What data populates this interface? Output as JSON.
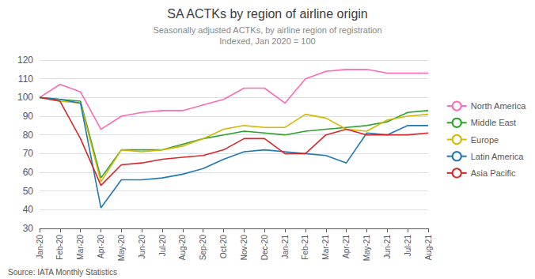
{
  "chart_data": {
    "type": "line",
    "title": "SA ACTKs by region of airline origin",
    "subtitle": "Seasonally adjusted ACTKs, by airline region of registration\nIndexed, Jan 2020 = 100",
    "source": "Source: IATA Monthly Statistics",
    "categories": [
      "Jan-20",
      "Feb-20",
      "Mar-20",
      "Apr-20",
      "May-20",
      "Jun-20",
      "Jul-20",
      "Aug-20",
      "Sep-20",
      "Oct-20",
      "Nov-20",
      "Dec-20",
      "Jan-21",
      "Feb-21",
      "Mar-21",
      "Apr-21",
      "May-21",
      "Jun-21",
      "Jul-21",
      "Aug-21"
    ],
    "series": [
      {
        "name": "North America",
        "color": "#FF69B4",
        "values": [
          100,
          107,
          103,
          83,
          90,
          92,
          93,
          93,
          96,
          99,
          105,
          105,
          97,
          110,
          114,
          115,
          115,
          113,
          113,
          113
        ]
      },
      {
        "name": "Middle East",
        "color": "#2ca02c",
        "values": [
          100,
          99,
          98,
          57,
          72,
          72,
          72,
          75,
          78,
          80,
          82,
          81,
          80,
          82,
          83,
          84,
          85,
          87,
          92,
          93
        ]
      },
      {
        "name": "Europe",
        "color": "#d4b800",
        "values": [
          100,
          98,
          97,
          55,
          72,
          71,
          72,
          74,
          78,
          83,
          85,
          84,
          84,
          91,
          89,
          83,
          82,
          88,
          90,
          91
        ]
      },
      {
        "name": "Latin America",
        "color": "#1f77b4",
        "values": [
          100,
          99,
          97,
          41,
          56,
          56,
          57,
          59,
          62,
          67,
          71,
          72,
          71,
          70,
          69,
          65,
          81,
          80,
          85,
          85
        ]
      },
      {
        "name": "Asia Pacific",
        "color": "#d62728",
        "values": [
          100,
          98,
          78,
          53,
          64,
          65,
          67,
          68,
          69,
          72,
          78,
          78,
          70,
          70,
          80,
          83,
          80,
          80,
          80,
          81
        ]
      }
    ],
    "ylim": [
      30,
      120
    ],
    "yticks": [
      30,
      40,
      50,
      60,
      70,
      80,
      90,
      100,
      110,
      120
    ],
    "grid": true,
    "legend": "right"
  }
}
